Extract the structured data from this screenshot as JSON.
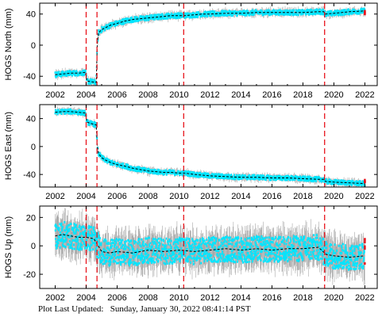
{
  "footer": {
    "label": "Plot Last Updated:",
    "timestamp": "Sunday, January 30, 2022 08:41:14 PST"
  },
  "colors": {
    "data_band": "#00e5ff",
    "error_bars": "#a8a8a8",
    "model_line": "#000000",
    "event_lines": "#e8141c",
    "latest_points": "#e8141c"
  },
  "chart_data": [
    {
      "type": "line",
      "ylabel": "HOGS North (mm)",
      "xlim": [
        2001.0,
        2022.8
      ],
      "ylim": [
        -52,
        54
      ],
      "xticks": [
        2002,
        2004,
        2006,
        2008,
        2010,
        2012,
        2014,
        2016,
        2018,
        2020,
        2022
      ],
      "yticks": [
        -40,
        0,
        40
      ],
      "event_years": [
        2004.0,
        2004.7,
        2010.3,
        2019.4
      ],
      "series": [
        {
          "x": [
            2002.0,
            2002.5,
            2003.0,
            2003.5,
            2003.95,
            2004.05,
            2004.3,
            2004.65,
            2004.72,
            2004.8,
            2005.0,
            2005.3,
            2005.6,
            2006.0,
            2006.5,
            2007.0,
            2007.5,
            2008.0,
            2008.5,
            2009.0,
            2009.5,
            2010.0,
            2010.25,
            2010.35,
            2011.0,
            2011.5,
            2012.0,
            2013.0,
            2014.0,
            2015.0,
            2016.0,
            2017.0,
            2018.0,
            2019.0,
            2019.35,
            2019.45,
            2020.0,
            2021.0,
            2022.0
          ],
          "y": [
            -38,
            -37,
            -36,
            -36,
            -35,
            -46,
            -47,
            -48,
            2,
            16,
            20,
            23,
            26,
            28,
            31,
            33,
            34,
            35,
            36,
            37,
            38,
            38,
            38,
            38,
            39,
            40,
            40,
            41,
            41,
            42,
            42,
            42,
            42,
            43,
            43,
            40,
            41,
            43,
            44
          ]
        }
      ],
      "latest": {
        "x": 2022.0,
        "y": 42
      }
    },
    {
      "type": "line",
      "ylabel": "HOGS East (mm)",
      "xlim": [
        2001.0,
        2022.8
      ],
      "ylim": [
        -58,
        60
      ],
      "xticks": [
        2002,
        2004,
        2006,
        2008,
        2010,
        2012,
        2014,
        2016,
        2018,
        2020,
        2022
      ],
      "yticks": [
        -40,
        0,
        40
      ],
      "event_years": [
        2004.0,
        2004.7,
        2010.3,
        2019.4
      ],
      "series": [
        {
          "x": [
            2002.0,
            2002.5,
            2003.0,
            2003.5,
            2003.95,
            2004.05,
            2004.3,
            2004.65,
            2004.72,
            2004.8,
            2005.0,
            2005.3,
            2005.6,
            2006.0,
            2006.5,
            2007.0,
            2007.5,
            2008.0,
            2008.5,
            2009.0,
            2009.5,
            2010.0,
            2010.25,
            2010.35,
            2011.0,
            2011.5,
            2012.0,
            2013.0,
            2014.0,
            2015.0,
            2016.0,
            2017.0,
            2018.0,
            2019.0,
            2019.35,
            2019.45,
            2020.0,
            2021.0,
            2022.0
          ],
          "y": [
            49,
            50,
            50,
            49,
            48,
            35,
            33,
            31,
            0,
            -10,
            -16,
            -20,
            -23,
            -26,
            -28,
            -31,
            -33,
            -35,
            -36,
            -37,
            -37,
            -38,
            -38,
            -38,
            -40,
            -41,
            -42,
            -43,
            -44,
            -44,
            -45,
            -45,
            -46,
            -47,
            -47,
            -50,
            -51,
            -52,
            -53
          ]
        }
      ],
      "latest": {
        "x": 2022.0,
        "y": -50
      }
    },
    {
      "type": "line",
      "ylabel": "HOGS Up (mm)",
      "xlim": [
        2001.0,
        2022.8
      ],
      "ylim": [
        -30,
        28
      ],
      "xticks": [
        2002,
        2004,
        2006,
        2008,
        2010,
        2012,
        2014,
        2016,
        2018,
        2020,
        2022
      ],
      "yticks": [
        -20,
        0,
        20
      ],
      "event_years": [
        2004.0,
        2004.7,
        2010.3,
        2019.4
      ],
      "series": [
        {
          "x": [
            2002.0,
            2002.5,
            2003.0,
            2003.5,
            2004.0,
            2004.5,
            2005.0,
            2005.5,
            2006.0,
            2007.0,
            2008.0,
            2009.0,
            2010.0,
            2011.0,
            2012.0,
            2013.0,
            2014.0,
            2015.0,
            2016.0,
            2017.0,
            2018.0,
            2019.0,
            2019.5,
            2020.0,
            2021.0,
            2022.0
          ],
          "y": [
            7,
            8,
            7,
            6,
            6,
            5,
            -4,
            -5,
            -4,
            -5,
            -3,
            -4,
            -3,
            -4,
            -3,
            -2,
            -3,
            -2,
            -3,
            -2,
            -2,
            -1,
            -6,
            -7,
            -8,
            -7
          ]
        }
      ],
      "latest": {
        "x": 2022.0,
        "y": -5
      }
    }
  ]
}
